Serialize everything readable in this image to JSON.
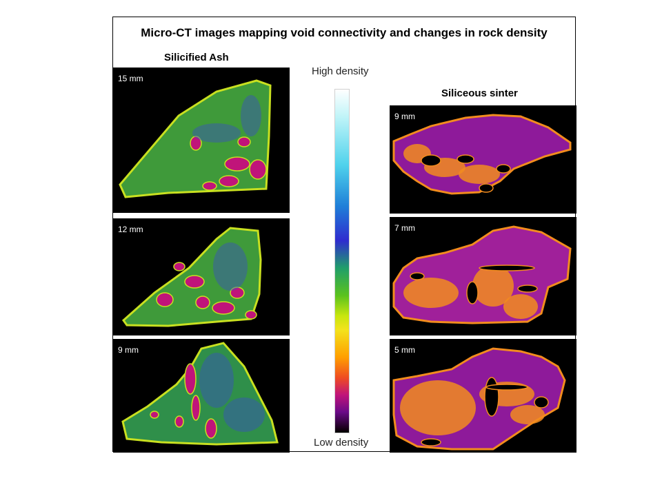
{
  "title": "Micro-CT images mapping void connectivity and changes in rock density",
  "sections": {
    "ash": {
      "label": "Silicified Ash",
      "panels": [
        {
          "depth": "15 mm",
          "fill": "#3f9a3a",
          "edge": "#c8e020",
          "voidcolor": "#c0147a"
        },
        {
          "depth": "12 mm",
          "fill": "#3f9a3a",
          "edge": "#c8e020",
          "voidcolor": "#c0147a"
        },
        {
          "depth": "9 mm",
          "fill": "#2f8f4a",
          "edge": "#c8e020",
          "voidcolor": "#c0147a"
        }
      ]
    },
    "sinter": {
      "label": "Siliceous sinter",
      "panels": [
        {
          "depth": "9 mm",
          "fill": "#8e1a9a",
          "edge": "#f28c1e",
          "voidcolor": "#000000"
        },
        {
          "depth": "7 mm",
          "fill": "#a0209a",
          "edge": "#f28c1e",
          "voidcolor": "#000000"
        },
        {
          "depth": "5 mm",
          "fill": "#8e1a9a",
          "edge": "#f28c1e",
          "voidcolor": "#000000"
        }
      ]
    }
  },
  "colorbar": {
    "high_label": "High density",
    "low_label": "Low density"
  }
}
